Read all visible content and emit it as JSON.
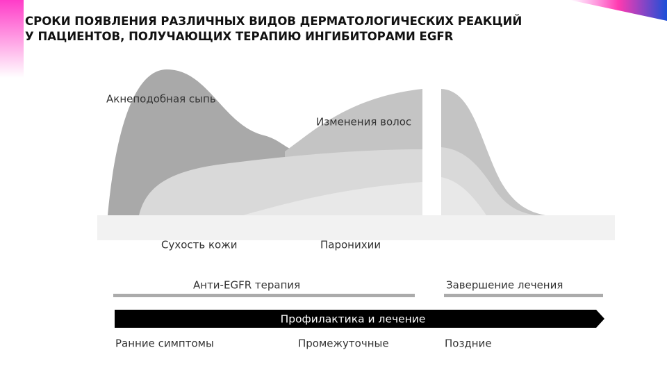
{
  "header": {
    "title_lines": [
      "СРОКИ ПОЯВЛЕНИЯ РАЗЛИЧНЫХ ВИДОВ ДЕРМАТОЛОГИЧЕСКИХ РЕАКЦИЙ",
      "У ПАЦИЕНТОВ, ПОЛУЧАЮЩИХ ТЕРАПИЮ ИНГИБИТОРАМИ EGFR"
    ]
  },
  "areas": {
    "acne": "Акнеподобная сыпь",
    "hair": "Изменения волос",
    "dry_skin": "Сухость кожи",
    "paronychia": "Паронихии"
  },
  "phases": {
    "therapy": "Анти-EGFR терапия",
    "completion": "Завершение лечения",
    "arrow": "Профилактика и лечение"
  },
  "stages": [
    "Ранние симптомы",
    "Промежуточные",
    "Поздние"
  ]
}
